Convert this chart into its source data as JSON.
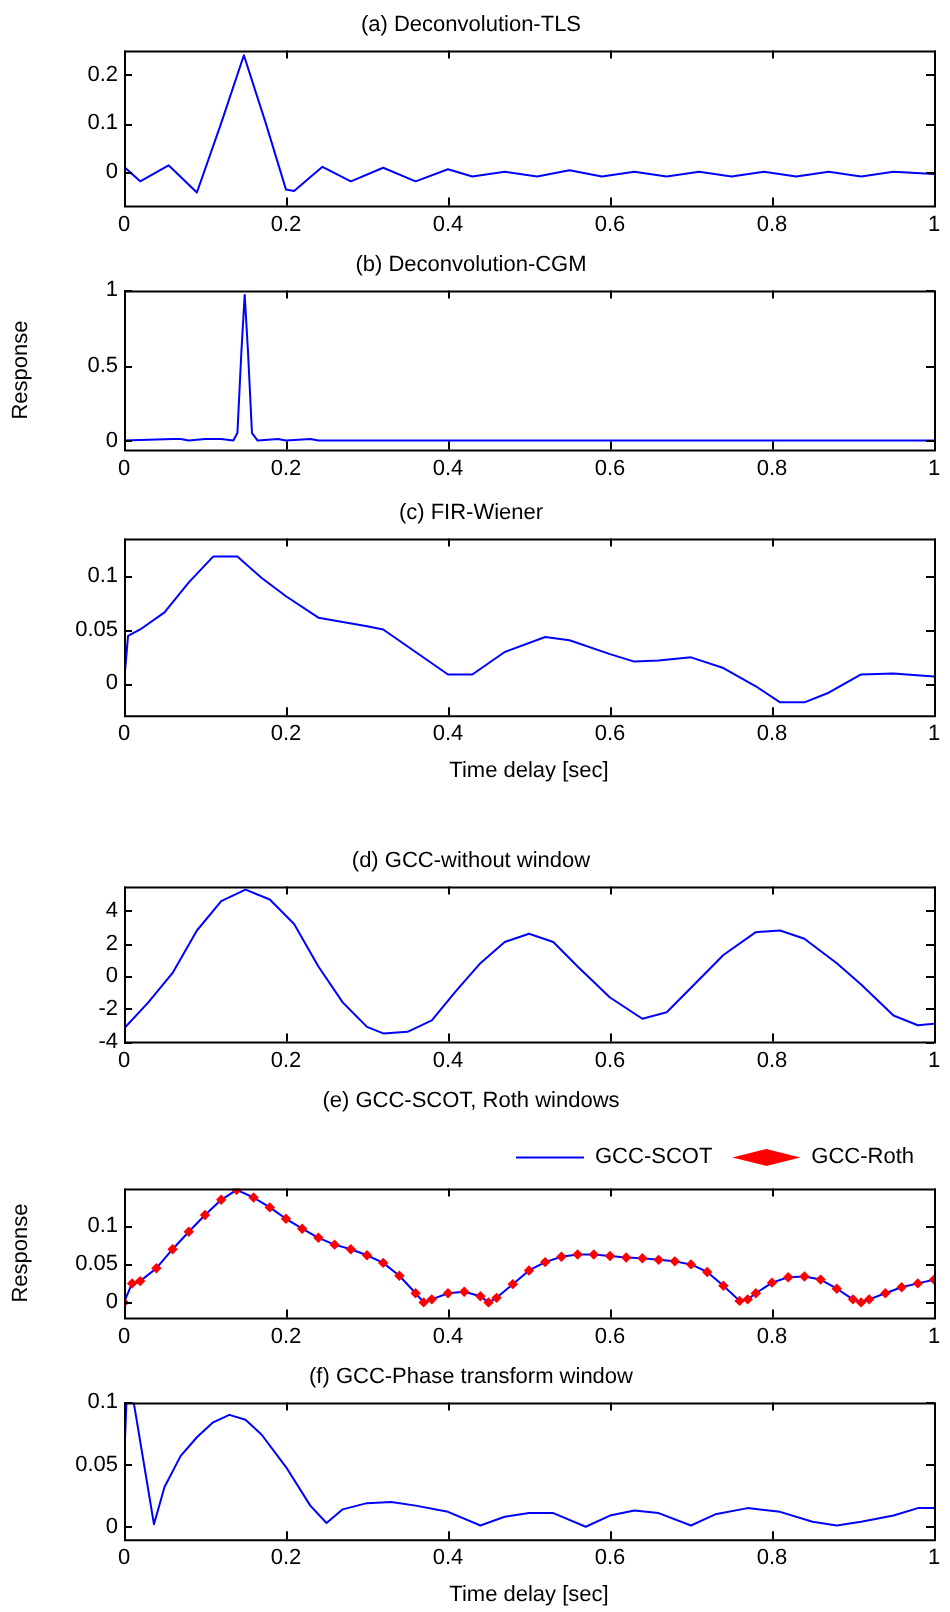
{
  "chart_data": [
    {
      "type": "line",
      "title": "(a) Deconvolution-TLS",
      "x": [
        0,
        0.02,
        0.055,
        0.09,
        0.12,
        0.148,
        0.175,
        0.2,
        0.21,
        0.245,
        0.28,
        0.32,
        0.36,
        0.4,
        0.43,
        0.47,
        0.51,
        0.55,
        0.59,
        0.63,
        0.67,
        0.71,
        0.75,
        0.79,
        0.83,
        0.87,
        0.91,
        0.95,
        1
      ],
      "xlim": [
        0,
        1
      ],
      "xticks": [
        0,
        0.2,
        0.4,
        0.6,
        0.8,
        1
      ],
      "ylim": [
        -0.07,
        0.25
      ],
      "yticks": [
        0,
        0.1,
        0.2
      ],
      "grid": false,
      "series": [
        {
          "color": "#0000ff",
          "values": [
            0.01,
            -0.02,
            0.013,
            -0.043,
            0.1,
            0.24,
            0.1,
            -0.037,
            -0.04,
            0.01,
            -0.02,
            0.008,
            -0.02,
            0.005,
            -0.01,
            0,
            -0.01,
            0.003,
            -0.01,
            0,
            -0.01,
            0,
            -0.01,
            0,
            -0.01,
            0,
            -0.01,
            0,
            -0.005
          ]
        }
      ]
    },
    {
      "type": "line",
      "title": "(b) Deconvolution-CGM",
      "ylabel": "Response",
      "x": [
        0,
        0.06,
        0.07,
        0.08,
        0.1,
        0.12,
        0.135,
        0.14,
        0.145,
        0.149,
        0.153,
        0.158,
        0.165,
        0.19,
        0.2,
        0.23,
        0.24,
        1
      ],
      "xlim": [
        0,
        1
      ],
      "xticks": [
        0,
        0.2,
        0.4,
        0.6,
        0.8,
        1
      ],
      "ylim": [
        -0.06,
        1
      ],
      "yticks": [
        0,
        0.5,
        1
      ],
      "grid": false,
      "series": [
        {
          "color": "#0000ff",
          "values": [
            0,
            0.01,
            0.01,
            0,
            0.01,
            0.01,
            0,
            0.05,
            0.6,
            0.97,
            0.6,
            0.05,
            0,
            0.01,
            0,
            0.01,
            0,
            0
          ]
        }
      ]
    },
    {
      "type": "line",
      "title": "(c) FIR-Wiener",
      "xlabel": "Time delay [sec]",
      "x": [
        0,
        0.005,
        0.02,
        0.05,
        0.08,
        0.11,
        0.14,
        0.17,
        0.2,
        0.24,
        0.3,
        0.32,
        0.36,
        0.4,
        0.43,
        0.47,
        0.52,
        0.55,
        0.6,
        0.63,
        0.66,
        0.7,
        0.74,
        0.78,
        0.81,
        0.84,
        0.87,
        0.91,
        0.95,
        1
      ],
      "xlim": [
        0,
        1
      ],
      "xticks": [
        0,
        0.2,
        0.4,
        0.6,
        0.8,
        1
      ],
      "ylim": [
        -0.03,
        0.135
      ],
      "yticks": [
        0,
        0.05,
        0.1
      ],
      "grid": false,
      "series": [
        {
          "color": "#0000ff",
          "values": [
            0,
            0.044,
            0.05,
            0.066,
            0.094,
            0.118,
            0.118,
            0.098,
            0.081,
            0.061,
            0.053,
            0.05,
            0.029,
            0.008,
            0.008,
            0.029,
            0.043,
            0.04,
            0.027,
            0.02,
            0.021,
            0.024,
            0.014,
            -0.003,
            -0.018,
            -0.018,
            -0.009,
            0.008,
            0.009,
            0.006
          ]
        }
      ]
    },
    {
      "type": "line",
      "title": "(d) GCC-without window",
      "x": [
        0,
        0.03,
        0.06,
        0.09,
        0.12,
        0.15,
        0.18,
        0.21,
        0.24,
        0.27,
        0.3,
        0.32,
        0.35,
        0.38,
        0.41,
        0.44,
        0.47,
        0.5,
        0.53,
        0.56,
        0.6,
        0.64,
        0.67,
        0.7,
        0.74,
        0.78,
        0.81,
        0.84,
        0.88,
        0.91,
        0.95,
        0.98,
        1
      ],
      "xlim": [
        0,
        1
      ],
      "xticks": [
        0,
        0.2,
        0.4,
        0.6,
        0.8,
        1
      ],
      "ylim": [
        -4,
        5.5
      ],
      "yticks": [
        -4,
        -2,
        0,
        2,
        4
      ],
      "grid": false,
      "series": [
        {
          "color": "#0000ff",
          "values": [
            -3.2,
            -1.6,
            0.2,
            2.8,
            4.6,
            5.3,
            4.7,
            3.2,
            0.6,
            -1.6,
            -3.1,
            -3.5,
            -3.4,
            -2.7,
            -0.9,
            0.8,
            2.1,
            2.6,
            2.1,
            0.6,
            -1.3,
            -2.6,
            -2.2,
            -0.7,
            1.3,
            2.7,
            2.8,
            2.3,
            0.8,
            -0.5,
            -2.4,
            -3,
            -2.9
          ]
        }
      ]
    },
    {
      "type": "line",
      "title": "(e) GCC-SCOT, Roth windows",
      "ylabel": "Response",
      "legend": "top right",
      "x": [
        0,
        0.01,
        0.02,
        0.04,
        0.06,
        0.08,
        0.1,
        0.12,
        0.139,
        0.16,
        0.18,
        0.2,
        0.22,
        0.24,
        0.26,
        0.28,
        0.3,
        0.32,
        0.34,
        0.36,
        0.37,
        0.38,
        0.4,
        0.42,
        0.44,
        0.45,
        0.46,
        0.48,
        0.5,
        0.52,
        0.54,
        0.56,
        0.58,
        0.6,
        0.62,
        0.64,
        0.66,
        0.68,
        0.7,
        0.72,
        0.74,
        0.76,
        0.77,
        0.78,
        0.8,
        0.82,
        0.84,
        0.86,
        0.88,
        0.9,
        0.91,
        0.92,
        0.94,
        0.96,
        0.98,
        1
      ],
      "xlim": [
        0,
        1
      ],
      "xticks": [
        0,
        0.2,
        0.4,
        0.6,
        0.8,
        1
      ],
      "ylim": [
        -0.02,
        0.15
      ],
      "yticks": [
        0,
        0.05,
        0.1
      ],
      "grid": false,
      "series": [
        {
          "name": "GCC-SCOT",
          "type": "line",
          "color": "#0000ff",
          "values": [
            0,
            0.025,
            0.028,
            0.045,
            0.07,
            0.093,
            0.115,
            0.135,
            0.148,
            0.138,
            0.125,
            0.11,
            0.097,
            0.085,
            0.076,
            0.07,
            0.062,
            0.052,
            0.035,
            0.012,
            0,
            0.004,
            0.012,
            0.014,
            0.008,
            0,
            0.006,
            0.024,
            0.042,
            0.053,
            0.06,
            0.063,
            0.063,
            0.061,
            0.059,
            0.058,
            0.056,
            0.054,
            0.05,
            0.04,
            0.022,
            0.002,
            0.004,
            0.012,
            0.026,
            0.033,
            0.034,
            0.03,
            0.018,
            0.004,
            0,
            0.004,
            0.012,
            0.02,
            0.025,
            0.03
          ]
        },
        {
          "name": "GCC-Roth",
          "type": "scatter",
          "marker": "diamond",
          "color": "#ff0000",
          "values": [
            0,
            0.025,
            0.028,
            0.045,
            0.07,
            0.093,
            0.115,
            0.135,
            0.148,
            0.138,
            0.125,
            0.11,
            0.097,
            0.085,
            0.076,
            0.07,
            0.062,
            0.052,
            0.035,
            0.012,
            0,
            0.004,
            0.012,
            0.014,
            0.008,
            0,
            0.006,
            0.024,
            0.042,
            0.053,
            0.06,
            0.063,
            0.063,
            0.061,
            0.059,
            0.058,
            0.056,
            0.054,
            0.05,
            0.04,
            0.022,
            0.002,
            0.004,
            0.012,
            0.026,
            0.033,
            0.034,
            0.03,
            0.018,
            0.004,
            0,
            0.004,
            0.012,
            0.02,
            0.025,
            0.03
          ]
        }
      ]
    },
    {
      "type": "line",
      "title": "(f) GCC-Phase transform window",
      "xlabel": "Time delay [sec]",
      "x": [
        0,
        0.003,
        0.012,
        0.037,
        0.05,
        0.07,
        0.09,
        0.11,
        0.13,
        0.15,
        0.17,
        0.2,
        0.23,
        0.25,
        0.27,
        0.3,
        0.33,
        0.36,
        0.4,
        0.44,
        0.47,
        0.5,
        0.53,
        0.57,
        0.6,
        0.63,
        0.66,
        0.7,
        0.73,
        0.77,
        0.81,
        0.85,
        0.88,
        0.91,
        0.95,
        0.98,
        1
      ],
      "xlim": [
        0,
        1
      ],
      "xticks": [
        0,
        0.2,
        0.4,
        0.6,
        0.8,
        1
      ],
      "ylim": [
        -0.01,
        0.1
      ],
      "yticks": [
        0,
        0.05,
        0.1
      ],
      "grid": false,
      "series": [
        {
          "color": "#0000ff",
          "values": [
            0.05,
            0.1,
            0.1,
            0.002,
            0.032,
            0.057,
            0.072,
            0.084,
            0.09,
            0.086,
            0.074,
            0.048,
            0.017,
            0.003,
            0.014,
            0.019,
            0.02,
            0.017,
            0.012,
            0.001,
            0.008,
            0.011,
            0.011,
            0,
            0.009,
            0.013,
            0.011,
            0.001,
            0.01,
            0.015,
            0.012,
            0.004,
            0.001,
            0.004,
            0.009,
            0.015,
            0.015
          ]
        }
      ]
    }
  ]
}
